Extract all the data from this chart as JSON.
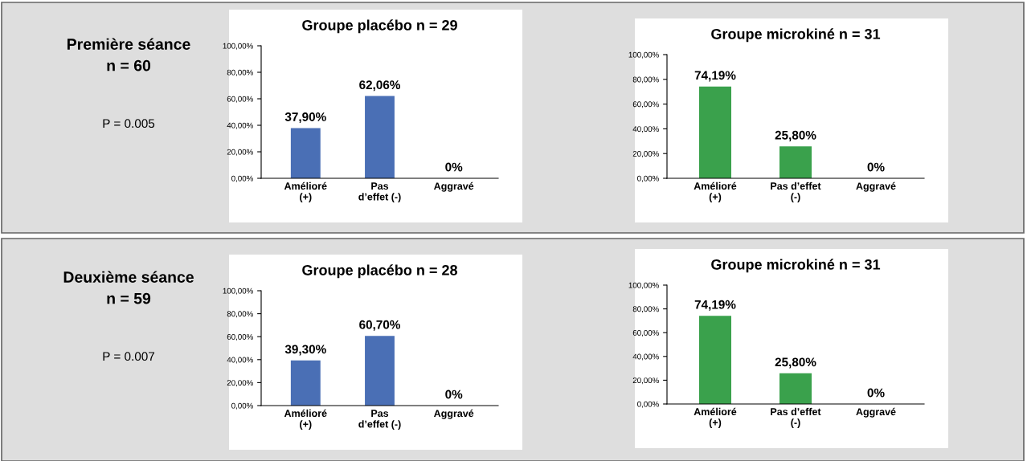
{
  "chart_data": [
    {
      "type": "other",
      "title": "Première séance\nn = 60",
      "annotations": [
        "P = 0.005"
      ]
    },
    {
      "type": "bar",
      "title": "Groupe placébo n = 29",
      "categories": [
        "Amélioré\n(+)",
        "Pas\nd’effet (-)",
        "Aggravé"
      ],
      "values": [
        37.9,
        62.06,
        0
      ],
      "value_labels": [
        "37,90%",
        "62,06%",
        "0%"
      ],
      "color": "#4a6fb5",
      "ylim": [
        0,
        100
      ],
      "yticks": [
        {
          "value": 0,
          "label": "0,00%"
        },
        {
          "value": 20,
          "label": "20,00%"
        },
        {
          "value": 40,
          "label": "40,00%"
        },
        {
          "value": 60,
          "label": "60,00%"
        },
        {
          "value": 80,
          "label": "80,00%"
        },
        {
          "value": 100,
          "label": "100,00%"
        }
      ]
    },
    {
      "type": "bar",
      "title": "Groupe microkiné n = 31",
      "categories": [
        "Amélioré\n(+)",
        "Pas d’effet\n(-)",
        "Aggravé"
      ],
      "values": [
        74.19,
        25.8,
        0
      ],
      "value_labels": [
        "74,19%",
        "25,80%",
        "0%"
      ],
      "color": "#3aa14c",
      "ylim": [
        0,
        100
      ],
      "yticks": [
        {
          "value": 0,
          "label": "0,00%"
        },
        {
          "value": 20,
          "label": "20,00%"
        },
        {
          "value": 40,
          "label": "40,00%"
        },
        {
          "value": 60,
          "label": "60,00%"
        },
        {
          "value": 80,
          "label": "80,00%"
        },
        {
          "value": 100,
          "label": "100,00%"
        }
      ]
    },
    {
      "type": "other",
      "title": "Deuxième séance\nn = 59",
      "annotations": [
        "P = 0.007"
      ]
    },
    {
      "type": "bar",
      "title": "Groupe placébo n = 28",
      "categories": [
        "Amélioré\n(+)",
        "Pas\nd’effet (-)",
        "Aggravé"
      ],
      "values": [
        39.3,
        60.7,
        0
      ],
      "value_labels": [
        "39,30%",
        "60,70%",
        "0%"
      ],
      "color": "#4a6fb5",
      "ylim": [
        0,
        100
      ],
      "yticks": [
        {
          "value": 0,
          "label": "0,00%"
        },
        {
          "value": 20,
          "label": "20,00%"
        },
        {
          "value": 40,
          "label": "40,00%"
        },
        {
          "value": 60,
          "label": "60,00%"
        },
        {
          "value": 80,
          "label": "80,00%"
        },
        {
          "value": 100,
          "label": "100,00%"
        }
      ]
    },
    {
      "type": "bar",
      "title": "Groupe microkiné n = 31",
      "categories": [
        "Amélioré\n(+)",
        "Pas d’effet\n(-)",
        "Aggravé"
      ],
      "values": [
        74.19,
        25.8,
        0
      ],
      "value_labels": [
        "74,19%",
        "25,80%",
        "0%"
      ],
      "color": "#3aa14c",
      "ylim": [
        0,
        100
      ],
      "yticks": [
        {
          "value": 0,
          "label": "0,00%"
        },
        {
          "value": 20,
          "label": "20,00%"
        },
        {
          "value": 40,
          "label": "40,00%"
        },
        {
          "value": 60,
          "label": "60,00%"
        },
        {
          "value": 80,
          "label": "80,00%"
        },
        {
          "value": 100,
          "label": "100,00%"
        }
      ]
    }
  ]
}
